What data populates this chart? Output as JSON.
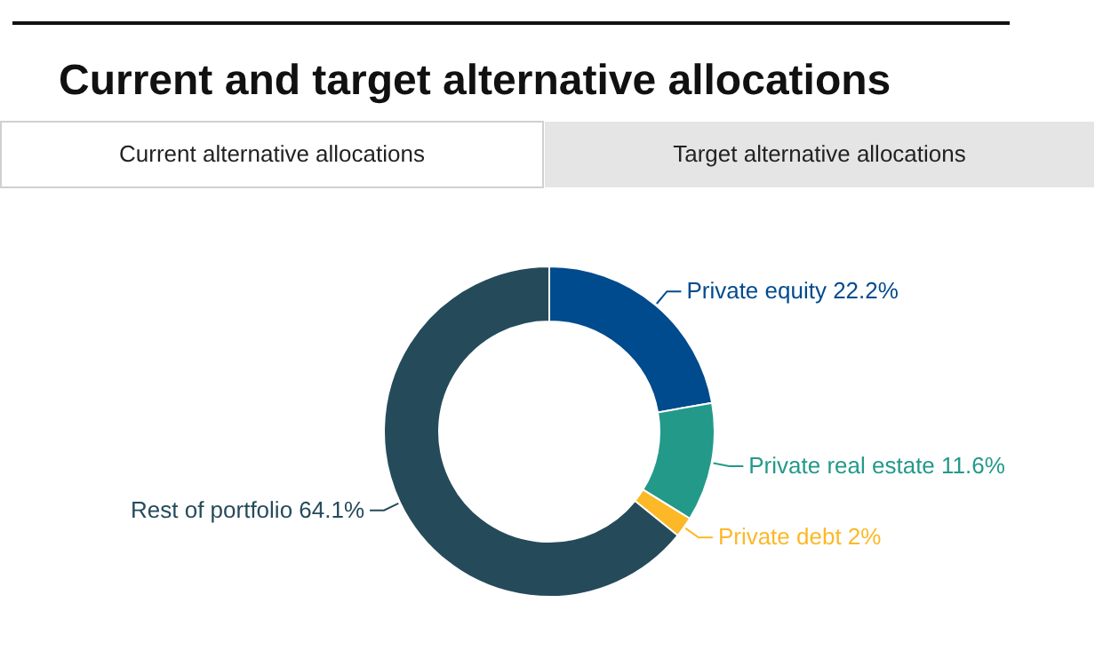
{
  "chart_data": {
    "type": "donut",
    "title": "Current and target alternative allocations",
    "annotations": [
      "Current alternative allocations",
      "Target alternative allocations"
    ],
    "categories": [
      "Private equity",
      "Private real estate",
      "Private debt",
      "Rest of portfolio"
    ],
    "values": [
      22.2,
      11.6,
      2,
      64.1
    ],
    "value_labels": [
      "22.2%",
      "11.6%",
      "2%",
      "64.1%"
    ],
    "colors": [
      "#004b8d",
      "#23998a",
      "#fdb827",
      "#254b5b"
    ]
  }
}
